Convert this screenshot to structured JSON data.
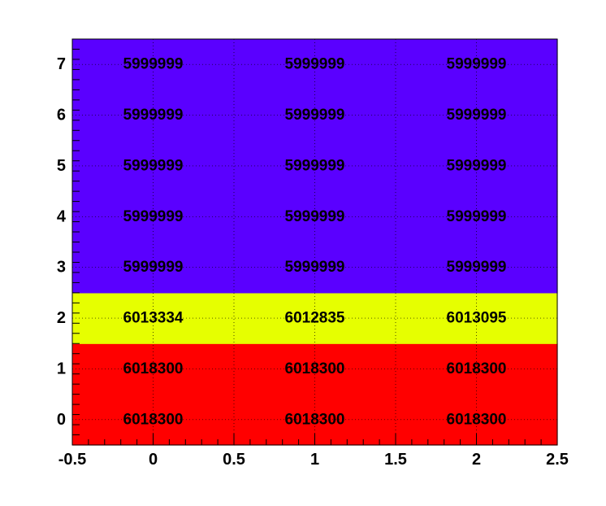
{
  "chart_data": {
    "type": "heatmap",
    "title": "",
    "xlabel": "",
    "ylabel": "",
    "x_bins": [
      0,
      1,
      2
    ],
    "y_bins": [
      0,
      1,
      2,
      3,
      4,
      5,
      6,
      7
    ],
    "xlim": [
      -0.5,
      2.5
    ],
    "ylim": [
      -0.5,
      7.5
    ],
    "x_ticks": [
      -0.5,
      0,
      0.5,
      1,
      1.5,
      2,
      2.5
    ],
    "x_tick_labels": [
      "-0.5",
      "0",
      "0.5",
      "1",
      "1.5",
      "2",
      "2.5"
    ],
    "y_ticks": [
      0,
      1,
      2,
      3,
      4,
      5,
      6,
      7
    ],
    "y_tick_labels": [
      "0",
      "1",
      "2",
      "3",
      "4",
      "5",
      "6",
      "7"
    ],
    "grid": true,
    "values": [
      [
        "6018300",
        "6018300",
        "6018300"
      ],
      [
        "6018300",
        "6018300",
        "6018300"
      ],
      [
        "6013334",
        "6012835",
        "6013095"
      ],
      [
        "5999999",
        "5999999",
        "5999999"
      ],
      [
        "5999999",
        "5999999",
        "5999999"
      ],
      [
        "5999999",
        "5999999",
        "5999999"
      ],
      [
        "5999999",
        "5999999",
        "5999999"
      ],
      [
        "5999999",
        "5999999",
        "5999999"
      ]
    ],
    "colors": {
      "high": "#ff0000",
      "mid": "#e6ff00",
      "low": "#5a00ff",
      "grid": "#000000"
    }
  }
}
